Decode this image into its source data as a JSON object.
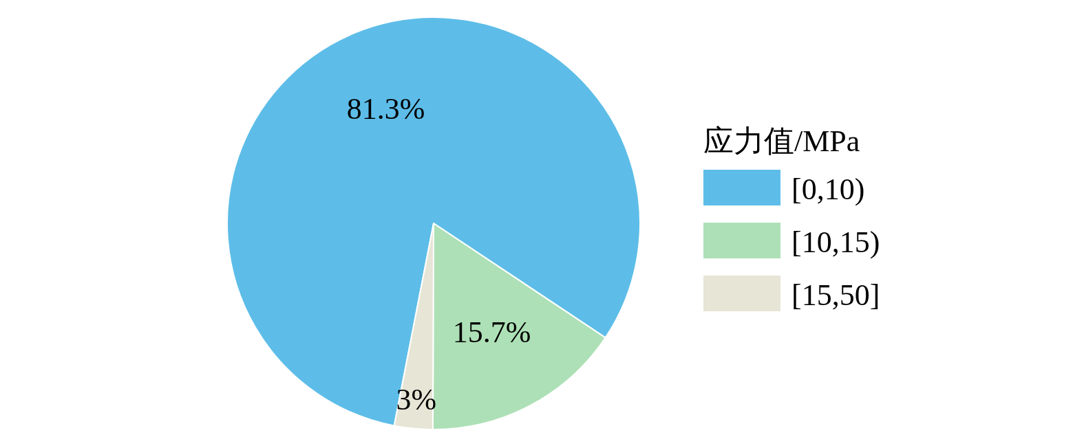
{
  "chart_data": {
    "type": "pie",
    "categories": [
      "[0,10)",
      "[10,15)",
      "[15,50]"
    ],
    "values": [
      81.3,
      15.7,
      3
    ],
    "colors": [
      "#5dbde8",
      "#ade0b6",
      "#e6e5d6"
    ],
    "value_labels": [
      "81.3%",
      "15.7%",
      "3%"
    ],
    "legend_title": "应力值/MPa",
    "legend": "right"
  }
}
